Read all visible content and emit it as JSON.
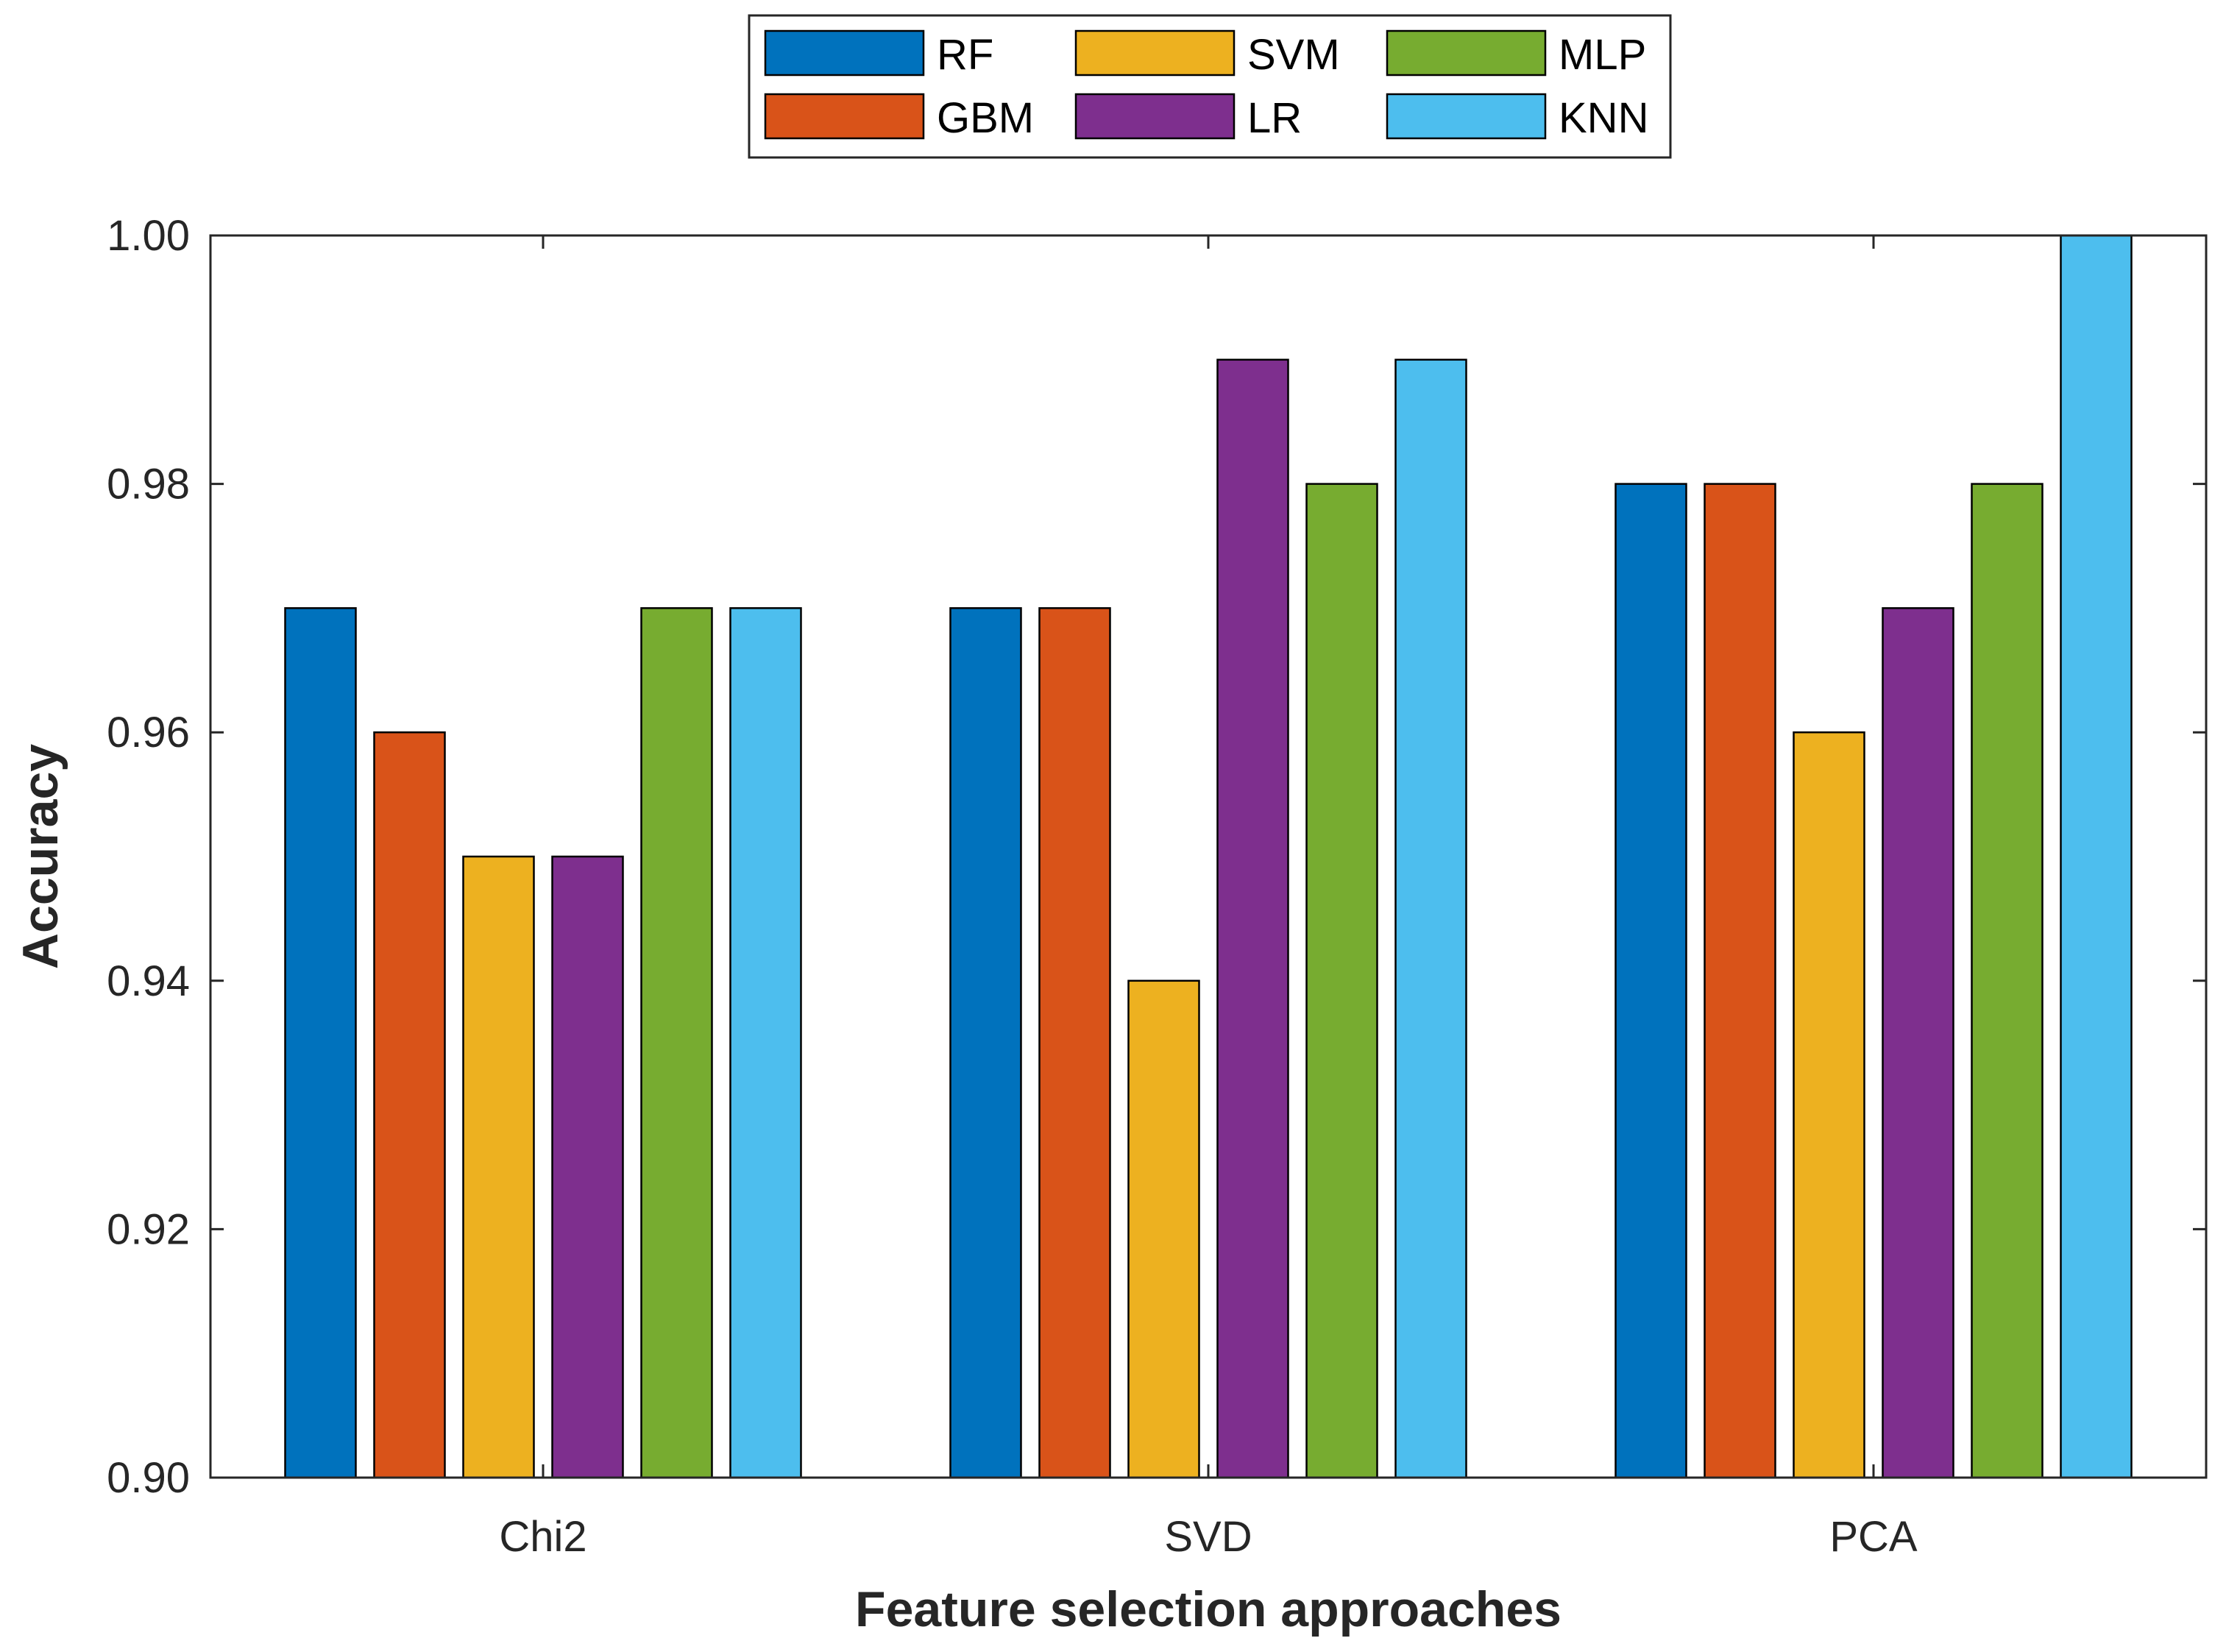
{
  "chart_data": {
    "type": "bar",
    "xlabel": "Feature selection approaches",
    "ylabel": "Accuracy",
    "ylim": [
      0.9,
      1.0
    ],
    "yticks": [
      "0.90",
      "0.92",
      "0.94",
      "0.96",
      "0.98",
      "1.00"
    ],
    "categories": [
      "Chi2",
      "SVD",
      "PCA"
    ],
    "series": [
      {
        "name": "RF",
        "color": "#0072BD",
        "values": [
          0.97,
          0.97,
          0.98
        ]
      },
      {
        "name": "GBM",
        "color": "#D95319",
        "values": [
          0.96,
          0.97,
          0.98
        ]
      },
      {
        "name": "SVM",
        "color": "#EDB120",
        "values": [
          0.95,
          0.94,
          0.96
        ]
      },
      {
        "name": "LR",
        "color": "#7E2F8E",
        "values": [
          0.95,
          0.99,
          0.97
        ]
      },
      {
        "name": "MLP",
        "color": "#77AC30",
        "values": [
          0.97,
          0.98,
          0.98
        ]
      },
      {
        "name": "KNN",
        "color": "#4DBEEE",
        "values": [
          0.97,
          0.99,
          1.0
        ]
      }
    ],
    "legend": {
      "placement": "top-center",
      "columns": 3
    },
    "grid": false
  }
}
